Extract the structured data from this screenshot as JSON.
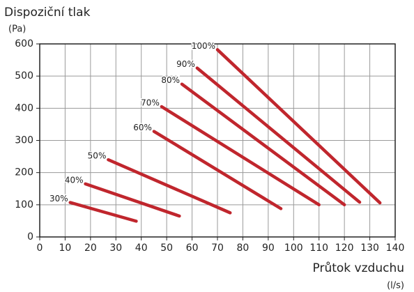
{
  "chart_data": {
    "type": "line",
    "y_label": "Dispoziční tlak",
    "y_unit": "(Pa)",
    "x_label": "Průtok vzduchu",
    "x_unit": "(l/s)",
    "xlim": [
      0,
      140
    ],
    "xticks": [
      0,
      10,
      20,
      30,
      40,
      50,
      60,
      70,
      80,
      90,
      100,
      110,
      120,
      130,
      140
    ],
    "ylim": [
      0,
      600
    ],
    "yticks": [
      0,
      100,
      200,
      300,
      400,
      500,
      600
    ],
    "grid": true,
    "series": [
      {
        "name": "30%",
        "color": "#c0262d",
        "x": [
          12,
          38
        ],
        "values": [
          107,
          49
        ]
      },
      {
        "name": "40%",
        "color": "#c0262d",
        "x": [
          18,
          55
        ],
        "values": [
          165,
          65
        ]
      },
      {
        "name": "50%",
        "color": "#c0262d",
        "x": [
          27,
          75
        ],
        "values": [
          240,
          75
        ]
      },
      {
        "name": "60%",
        "color": "#c0262d",
        "x": [
          45,
          95
        ],
        "values": [
          328,
          88
        ]
      },
      {
        "name": "70%",
        "color": "#c0262d",
        "x": [
          48,
          110
        ],
        "values": [
          405,
          100
        ]
      },
      {
        "name": "80%",
        "color": "#c0262d",
        "x": [
          56,
          120
        ],
        "values": [
          475,
          100
        ]
      },
      {
        "name": "90%",
        "color": "#c0262d",
        "x": [
          62,
          126
        ],
        "values": [
          525,
          108
        ]
      },
      {
        "name": "100%",
        "color": "#c0262d",
        "x": [
          70,
          134
        ],
        "values": [
          582,
          106
        ]
      }
    ]
  }
}
